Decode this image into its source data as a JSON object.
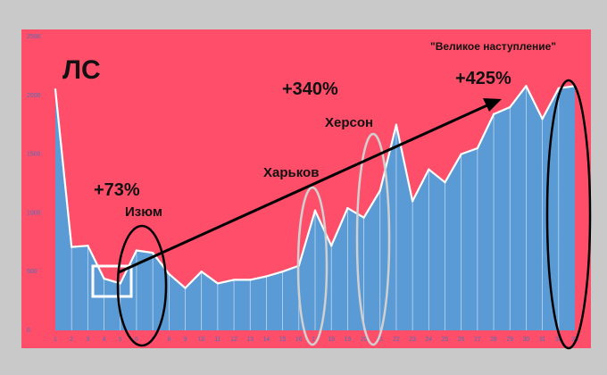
{
  "chart_data": {
    "type": "area",
    "title": "ЛС",
    "subtitle": "\"Великое наступление\"",
    "x": [
      1,
      2,
      3,
      4,
      5,
      6,
      7,
      8,
      9,
      10,
      11,
      12,
      13,
      14,
      15,
      16,
      17,
      18,
      19,
      20,
      21,
      22,
      23,
      24,
      25,
      26,
      27,
      28,
      29,
      30,
      31,
      32,
      33
    ],
    "values": [
      2050,
      710,
      720,
      440,
      400,
      680,
      660,
      480,
      360,
      500,
      400,
      430,
      430,
      460,
      500,
      550,
      1020,
      720,
      1040,
      960,
      1190,
      1750,
      1100,
      1370,
      1260,
      1500,
      1550,
      1840,
      1900,
      2080,
      1800,
      2060,
      2080
    ],
    "ylim": [
      0,
      2500
    ],
    "yticks": [
      0,
      500,
      1000,
      1500,
      2000,
      2500
    ],
    "colors": {
      "background": "#ff4e6a",
      "area": "#5b9bd5",
      "line": "#ffffff",
      "tick": "#4a72b8",
      "outer": "#c9c9c9"
    },
    "annotations": {
      "pct_izyum": "+73%",
      "label_izyum": "Изюм",
      "pct_mid": "+340%",
      "label_kharkov": "Харьков",
      "label_kherson": "Херсон",
      "pct_end": "+425%"
    }
  }
}
